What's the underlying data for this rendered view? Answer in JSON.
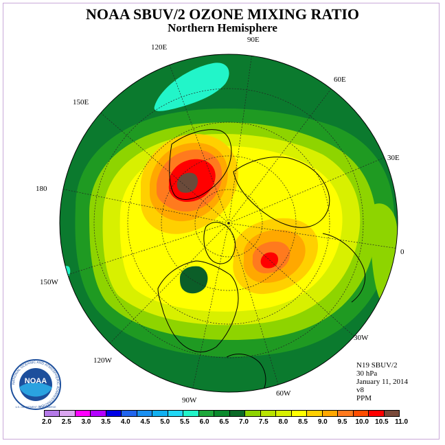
{
  "header": {
    "title": "NOAA SBUV/2 OZONE MIXING RATIO",
    "subtitle": "Northern Hemisphere"
  },
  "map": {
    "projection": "polar stereographic, north pole centered",
    "longitude_labels": [
      "90E",
      "60E",
      "30E",
      "0",
      "30W",
      "60W",
      "90W",
      "120W",
      "150W",
      "180",
      "150E",
      "120E"
    ],
    "contour_regions": [
      {
        "name": "outer-band",
        "level": "6.5-7.0",
        "color": "#0b7a2e"
      },
      {
        "name": "mid-band",
        "level": "7.0-7.5",
        "color": "#1f9a22"
      },
      {
        "name": "light-green-ring",
        "level": "7.5-8.0",
        "color": "#8ed400"
      },
      {
        "name": "yellow-green-ring",
        "level": "8.0-8.5",
        "color": "#d8f000"
      },
      {
        "name": "yellow-core",
        "level": "8.5-9.0",
        "color": "#ffff00"
      },
      {
        "name": "siberia-max",
        "level": "10.5-11.0",
        "color": "#6a4a3a"
      },
      {
        "name": "atlantic-max",
        "level": "10.0-10.5",
        "color": "#ff0000"
      },
      {
        "name": "pacific-min",
        "level": "5.5-6.0",
        "color": "#22f5c9"
      },
      {
        "name": "canada-min",
        "level": "6.5-7.0",
        "color": "#0b5e28"
      }
    ]
  },
  "info": {
    "instrument": "N19 SBUV/2",
    "pressure": "30 hPa",
    "date": "January 11, 2014",
    "version": "v8",
    "units": "PPM"
  },
  "logo": {
    "label": "NOAA",
    "ring_text": "NATIONAL OCEANIC AND ATMOSPHERIC ADMINISTRATION",
    "dept_text": "U.S. DEPARTMENT OF COMMERCE"
  },
  "colorbar": {
    "colors": [
      "#b57ae8",
      "#dba6f0",
      "#ff00ff",
      "#b400ff",
      "#0000e6",
      "#2266ee",
      "#1a90f0",
      "#11b0f0",
      "#22d8f5",
      "#22f5c9",
      "#1ea83b",
      "#0b8a2c",
      "#0b6a26",
      "#8ed400",
      "#b9e400",
      "#d8f000",
      "#ffff00",
      "#ffd000",
      "#ffa800",
      "#ff7a1e",
      "#ff4d00",
      "#ff0000",
      "#7a4a3a"
    ],
    "tick_labels": [
      "2.0",
      "2.5",
      "3.0",
      "3.5",
      "4.0",
      "4.5",
      "5.0",
      "5.5",
      "6.0",
      "6.5",
      "7.0",
      "7.5",
      "8.0",
      "8.5",
      "9.0",
      "9.5",
      "10.0",
      "10.5",
      "11.0"
    ]
  }
}
